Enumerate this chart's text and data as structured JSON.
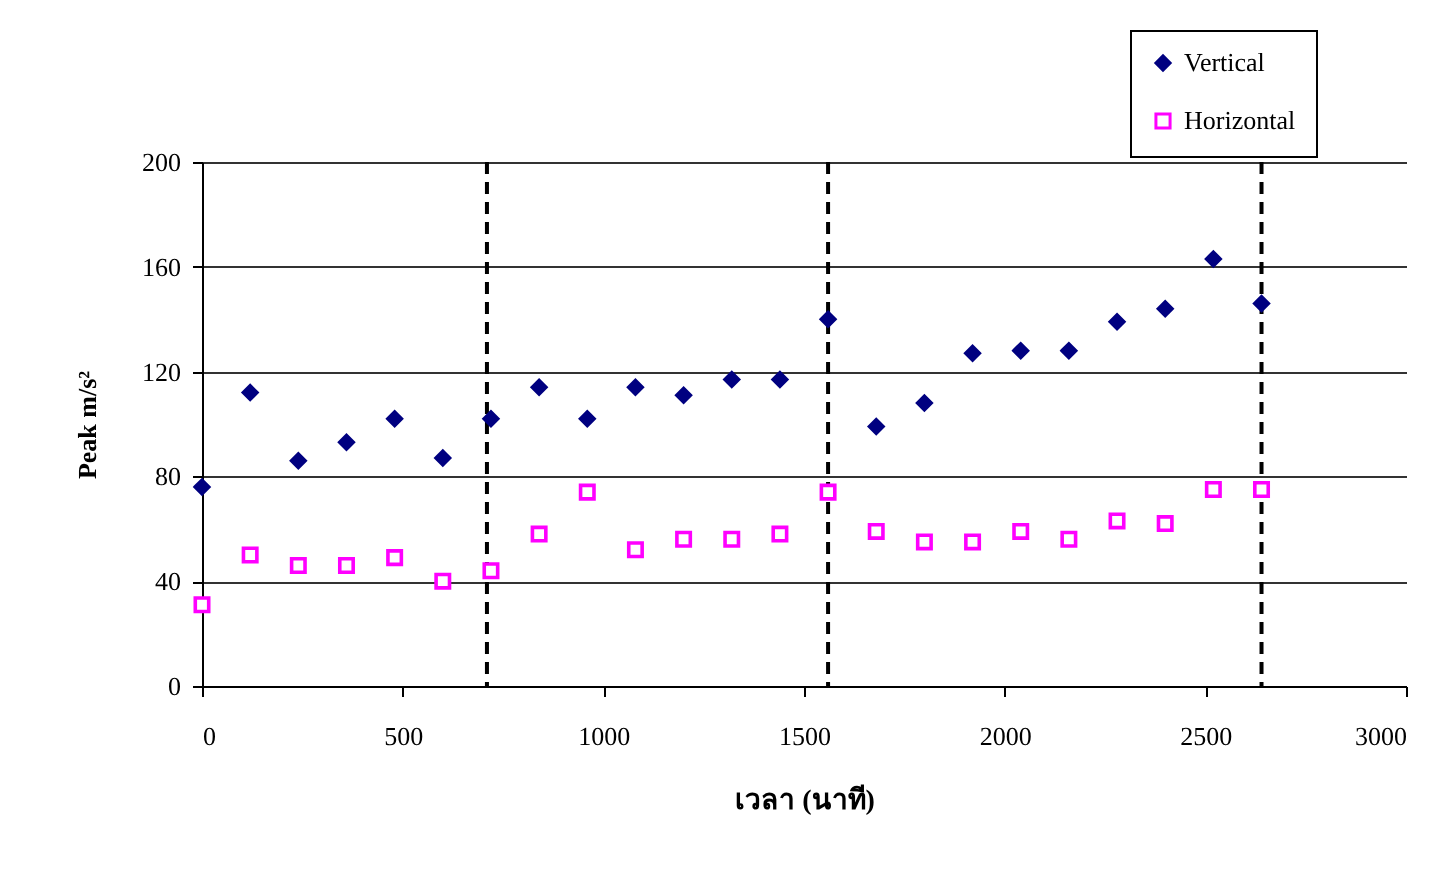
{
  "chart_data": {
    "type": "scatter",
    "xlabel": "เวลา (นาที)",
    "ylabel": "Peak  m/s²",
    "x": [
      0,
      120,
      240,
      360,
      480,
      600,
      720,
      840,
      960,
      1080,
      1200,
      1320,
      1440,
      1560,
      1680,
      1800,
      1920,
      2040,
      2160,
      2280,
      2400,
      2520,
      2640
    ],
    "series": [
      {
        "name": "Vertical",
        "color": "#000080",
        "marker": "diamond",
        "values": [
          76,
          112,
          86,
          93,
          102,
          87,
          102,
          114,
          102,
          114,
          111,
          117,
          117,
          140,
          99,
          108,
          127,
          128,
          128,
          139,
          144,
          163,
          146
        ]
      },
      {
        "name": "Horizontal",
        "color": "#ff00ff",
        "marker": "square",
        "values": [
          31,
          50,
          46,
          46,
          49,
          40,
          44,
          58,
          74,
          52,
          56,
          56,
          58,
          74,
          59,
          55,
          55,
          59,
          56,
          63,
          62,
          75,
          75
        ]
      }
    ],
    "xlim": [
      0,
      3000
    ],
    "xticks": [
      0,
      500,
      1000,
      1500,
      2000,
      2500,
      3000
    ],
    "ylim": [
      0,
      200
    ],
    "yticks": [
      0,
      40,
      80,
      120,
      160,
      200
    ],
    "grid": "y",
    "legend": "top right",
    "ref_lines": [
      {
        "axis": "x",
        "value": 710,
        "color": "#000000",
        "line_style": "dashed"
      },
      {
        "axis": "x",
        "value": 1560,
        "color": "#000000",
        "line_style": "dashed"
      },
      {
        "axis": "x",
        "value": 2640,
        "color": "#000000",
        "line_style": "dashed"
      }
    ]
  }
}
